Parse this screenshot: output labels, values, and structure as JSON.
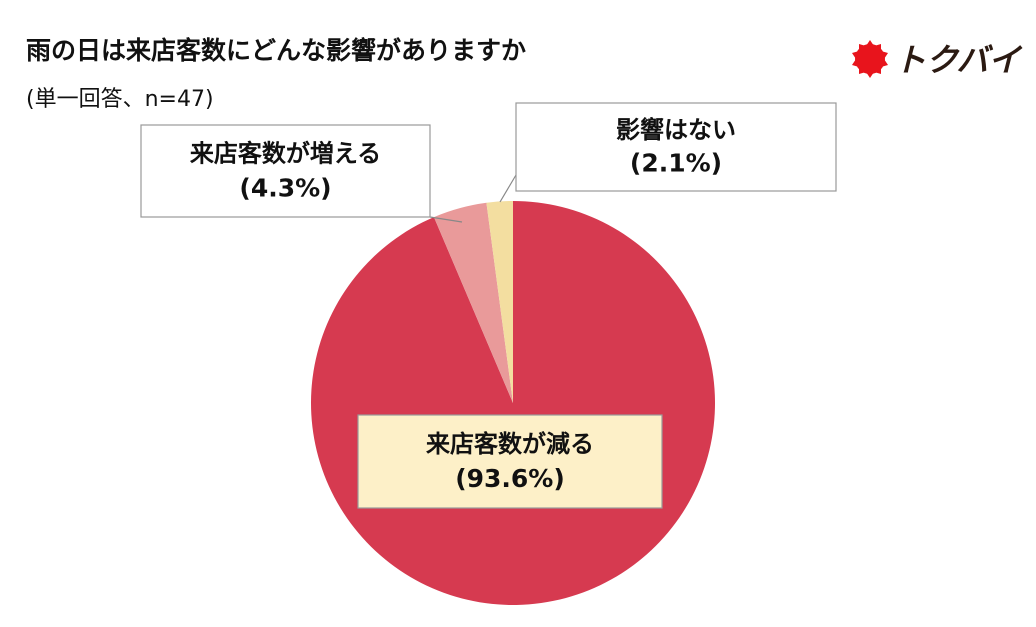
{
  "chart_data": {
    "type": "pie",
    "title": "雨の日は来店客数にどんな影響がありますか",
    "subtitle": "(単一回答、n=47)",
    "categories": [
      "来店客数が減る",
      "来店客数が増える",
      "影響はない"
    ],
    "values": [
      93.6,
      4.3,
      2.1
    ],
    "value_labels": [
      "(93.6%)",
      "(4.3%)",
      "(2.1%)"
    ],
    "colors": [
      "#d63a50",
      "#e99a9a",
      "#f3dea0"
    ]
  },
  "logo": "トクバイ"
}
